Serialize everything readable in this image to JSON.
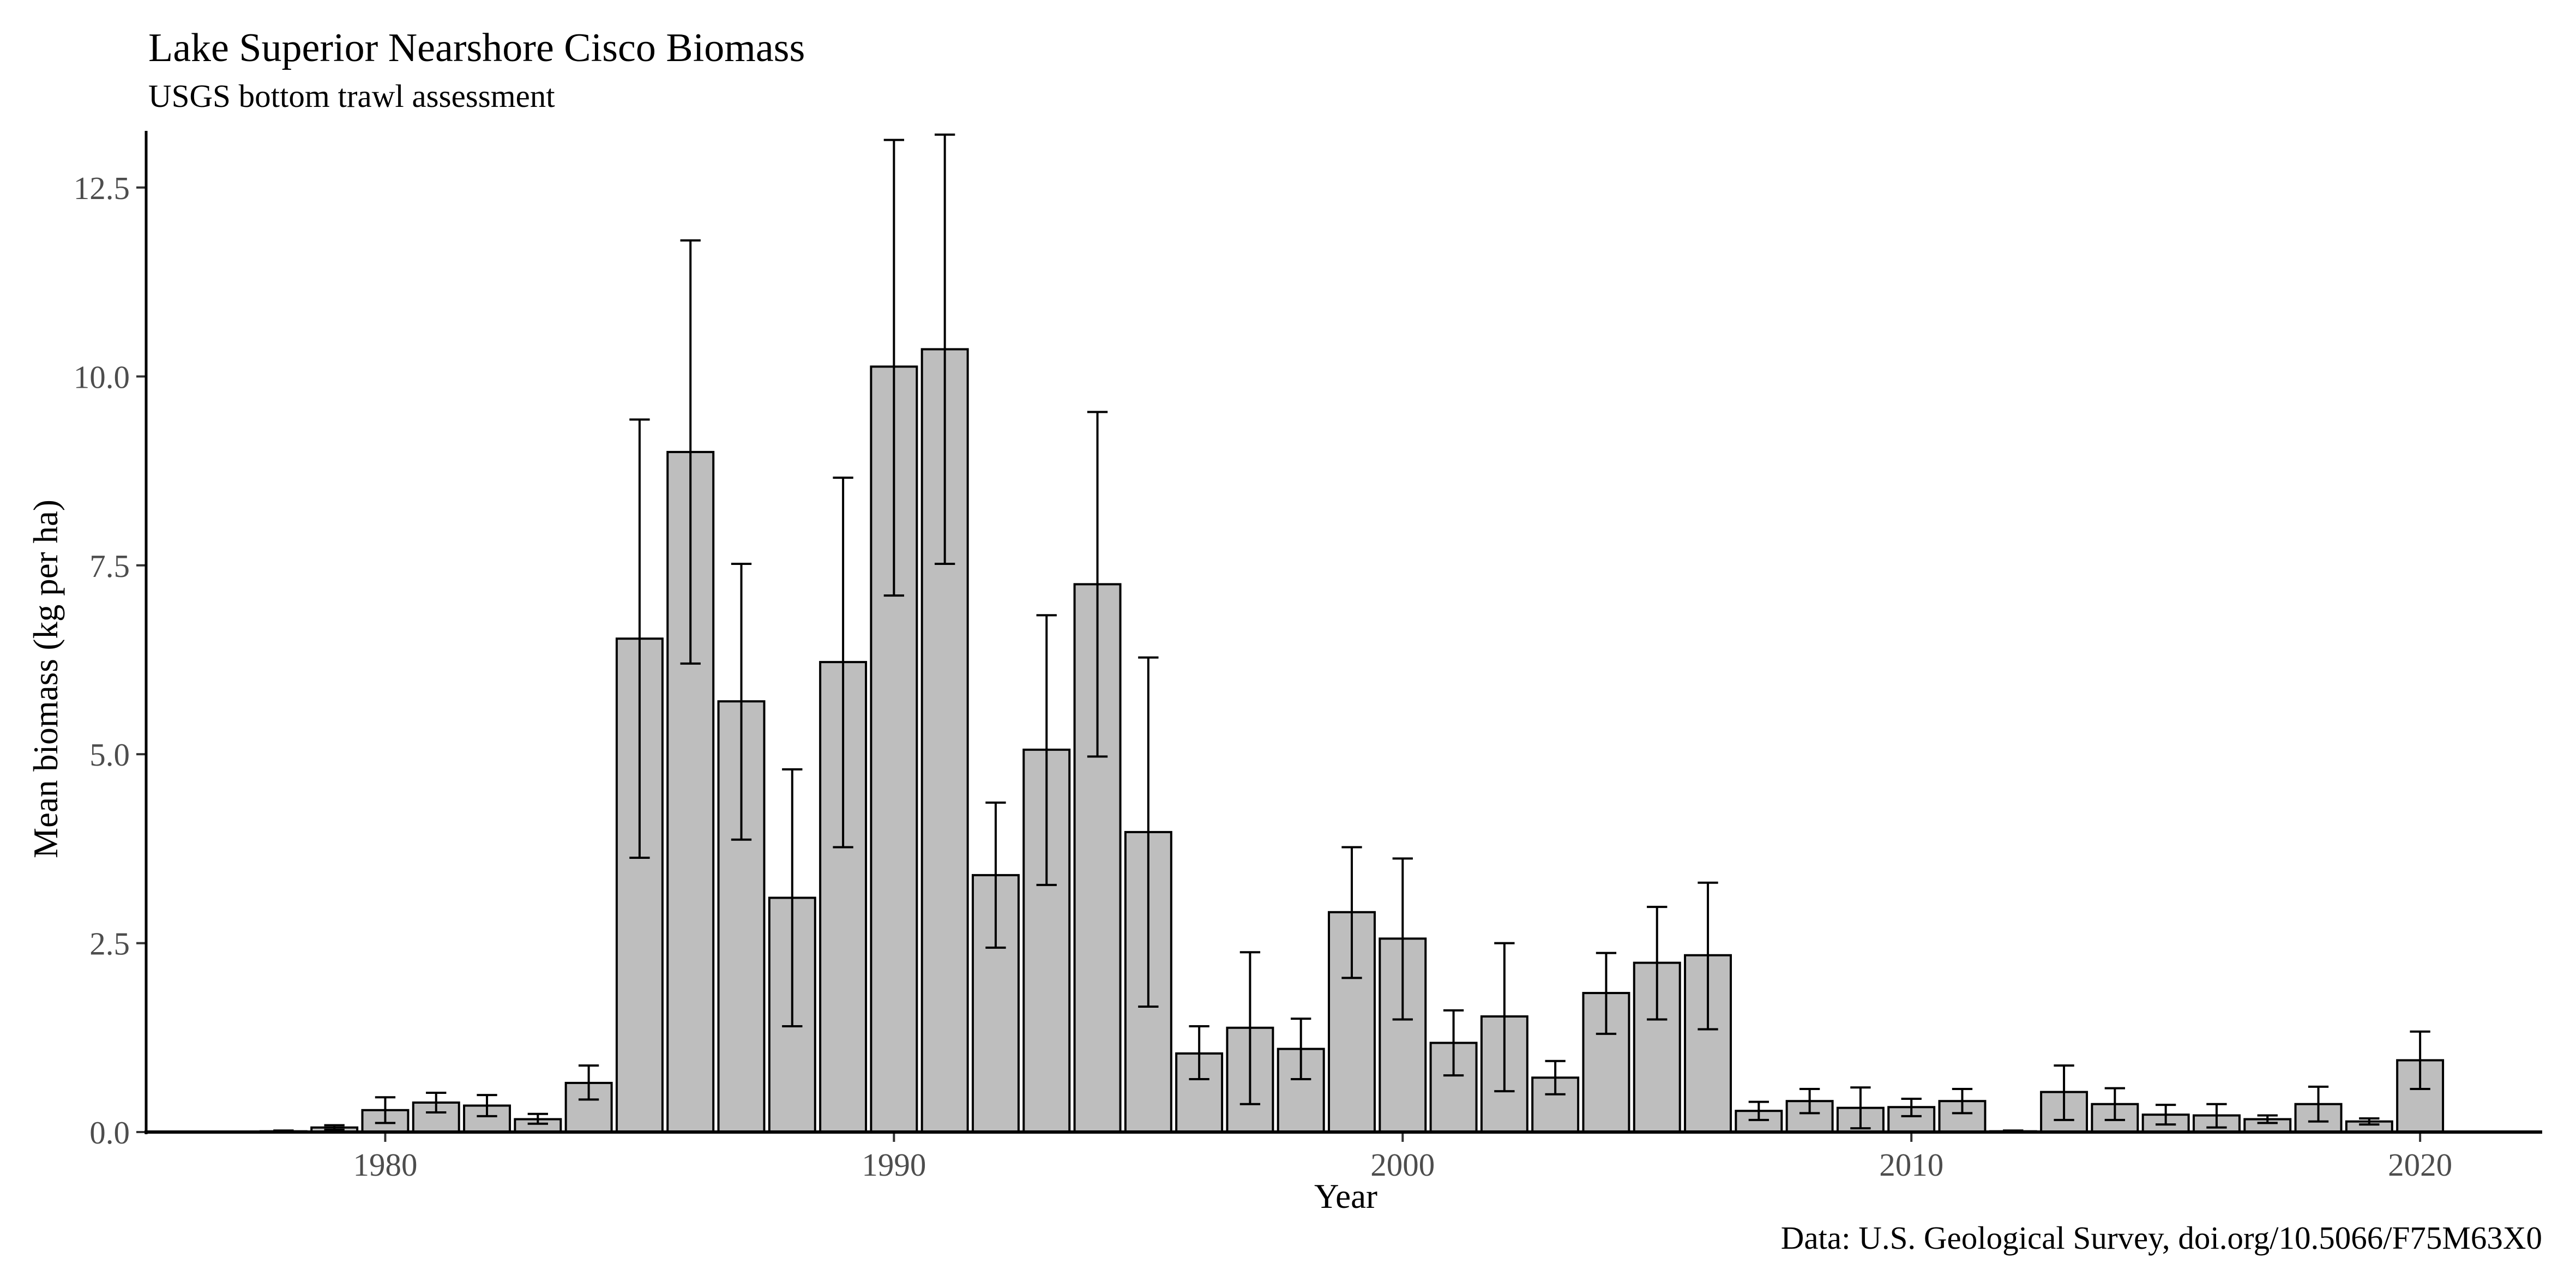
{
  "chart_data": {
    "type": "bar",
    "title": "Lake Superior Nearshore Cisco Biomass",
    "subtitle": "USGS bottom trawl assessment",
    "xlabel": "Year",
    "ylabel": "Mean biomass (kg per ha)",
    "caption": "Data: U.S. Geological Survey, doi.org/10.5066/F75M63X0",
    "xlim": [
      1975.3,
      2022.4
    ],
    "ylim": [
      0,
      13.25
    ],
    "x_ticks": [
      1980,
      1990,
      2000,
      2010,
      2020
    ],
    "y_ticks": [
      0,
      2.5,
      5,
      7.5,
      10,
      12.5
    ],
    "y_tick_labels": [
      "0.0",
      "2.5",
      "5.0",
      "7.5",
      "10.0",
      "12.5"
    ],
    "grid": false,
    "bar_fill": "#bebebe",
    "bar_outline": "#000000",
    "error_bars": true,
    "years": [
      1978,
      1979,
      1980,
      1981,
      1982,
      1983,
      1984,
      1985,
      1986,
      1987,
      1988,
      1989,
      1990,
      1991,
      1992,
      1993,
      1994,
      1995,
      1996,
      1997,
      1998,
      1999,
      2000,
      2001,
      2002,
      2003,
      2004,
      2005,
      2006,
      2007,
      2008,
      2009,
      2010,
      2011,
      2012,
      2013,
      2014,
      2015,
      2016,
      2017,
      2018,
      2019,
      2020
    ],
    "values": [
      0.01,
      0.06,
      0.29,
      0.39,
      0.35,
      0.17,
      0.65,
      6.53,
      9.0,
      5.7,
      3.1,
      6.22,
      10.13,
      10.36,
      3.4,
      5.06,
      7.25,
      3.97,
      1.04,
      1.38,
      1.1,
      2.91,
      2.56,
      1.18,
      1.53,
      0.72,
      1.84,
      2.24,
      2.34,
      0.28,
      0.41,
      0.32,
      0.33,
      0.41,
      0.01,
      0.53,
      0.37,
      0.23,
      0.22,
      0.17,
      0.37,
      0.14,
      0.95
    ],
    "error_low": [
      0.0,
      0.03,
      0.12,
      0.26,
      0.21,
      0.11,
      0.43,
      3.63,
      6.2,
      3.87,
      1.4,
      3.77,
      7.1,
      7.52,
      2.44,
      3.27,
      4.97,
      1.66,
      0.7,
      0.37,
      0.7,
      2.04,
      1.49,
      0.75,
      0.54,
      0.5,
      1.3,
      1.49,
      1.36,
      0.16,
      0.25,
      0.05,
      0.21,
      0.25,
      0.0,
      0.16,
      0.16,
      0.1,
      0.06,
      0.12,
      0.14,
      0.1,
      0.57
    ],
    "error_high": [
      0.02,
      0.09,
      0.46,
      0.52,
      0.49,
      0.24,
      0.88,
      9.43,
      11.8,
      7.52,
      4.8,
      8.66,
      13.13,
      13.2,
      4.36,
      6.84,
      9.53,
      6.28,
      1.4,
      2.38,
      1.5,
      3.77,
      3.62,
      1.61,
      2.5,
      0.94,
      2.37,
      2.98,
      3.3,
      0.4,
      0.57,
      0.59,
      0.44,
      0.57,
      0.02,
      0.88,
      0.58,
      0.36,
      0.37,
      0.22,
      0.6,
      0.18,
      1.33
    ]
  }
}
